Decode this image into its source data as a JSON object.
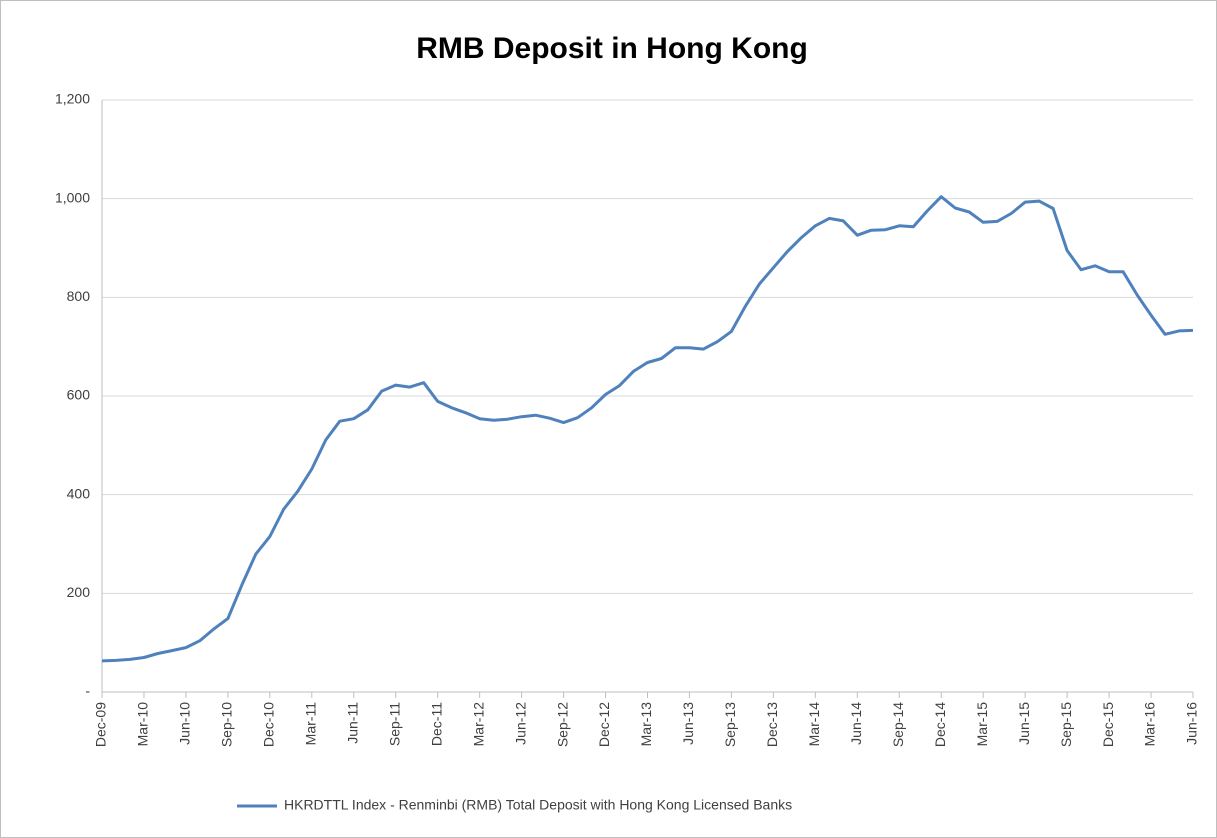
{
  "chart_data": {
    "type": "line",
    "title": "RMB Deposit in Hong Kong",
    "categories": [
      "Dec-09",
      null,
      null,
      "Mar-10",
      null,
      null,
      "Jun-10",
      null,
      null,
      "Sep-10",
      null,
      null,
      "Dec-10",
      null,
      null,
      "Mar-11",
      null,
      null,
      "Jun-11",
      null,
      null,
      "Sep-11",
      null,
      null,
      "Dec-11",
      null,
      null,
      "Mar-12",
      null,
      null,
      "Jun-12",
      null,
      null,
      "Sep-12",
      null,
      null,
      "Dec-12",
      null,
      null,
      "Mar-13",
      null,
      null,
      "Jun-13",
      null,
      null,
      "Sep-13",
      null,
      null,
      "Dec-13",
      null,
      null,
      "Mar-14",
      null,
      null,
      "Jun-14",
      null,
      null,
      "Sep-14",
      null,
      null,
      "Dec-14",
      null,
      null,
      "Mar-15",
      null,
      null,
      "Jun-15",
      null,
      null,
      "Sep-15",
      null,
      null,
      "Dec-15",
      null,
      null,
      "Mar-16",
      null,
      null,
      "Jun-16"
    ],
    "series": [
      {
        "name": "HKRDTTL Index - Renminbi (RMB) Total Deposit with Hong Kong Licensed Banks",
        "color": "#4f81bd",
        "values": [
          63,
          64,
          66,
          70,
          78,
          84,
          90,
          104,
          128,
          149,
          217,
          280,
          315,
          371,
          407,
          452,
          511,
          549,
          554,
          572,
          610,
          622,
          618,
          627,
          589,
          576,
          566,
          554,
          551,
          553,
          558,
          561,
          555,
          546,
          556,
          576,
          603,
          621,
          650,
          668,
          676,
          698,
          698,
          695,
          710,
          731,
          782,
          827,
          860,
          893,
          921,
          945,
          960,
          955,
          926,
          936,
          937,
          945,
          943,
          975,
          1004,
          981,
          973,
          952,
          954,
          970,
          993,
          995,
          980,
          895,
          856,
          864,
          852,
          852,
          805,
          764,
          725,
          732,
          733
        ]
      }
    ],
    "ylim": [
      0,
      1200
    ],
    "yticks": [
      {
        "value": 0,
        "label": "-"
      },
      200,
      400,
      600,
      800,
      {
        "value": 1000,
        "label": "1,000"
      },
      {
        "value": 1200,
        "label": "1,200"
      }
    ],
    "grid": true,
    "legend": "bottom"
  }
}
